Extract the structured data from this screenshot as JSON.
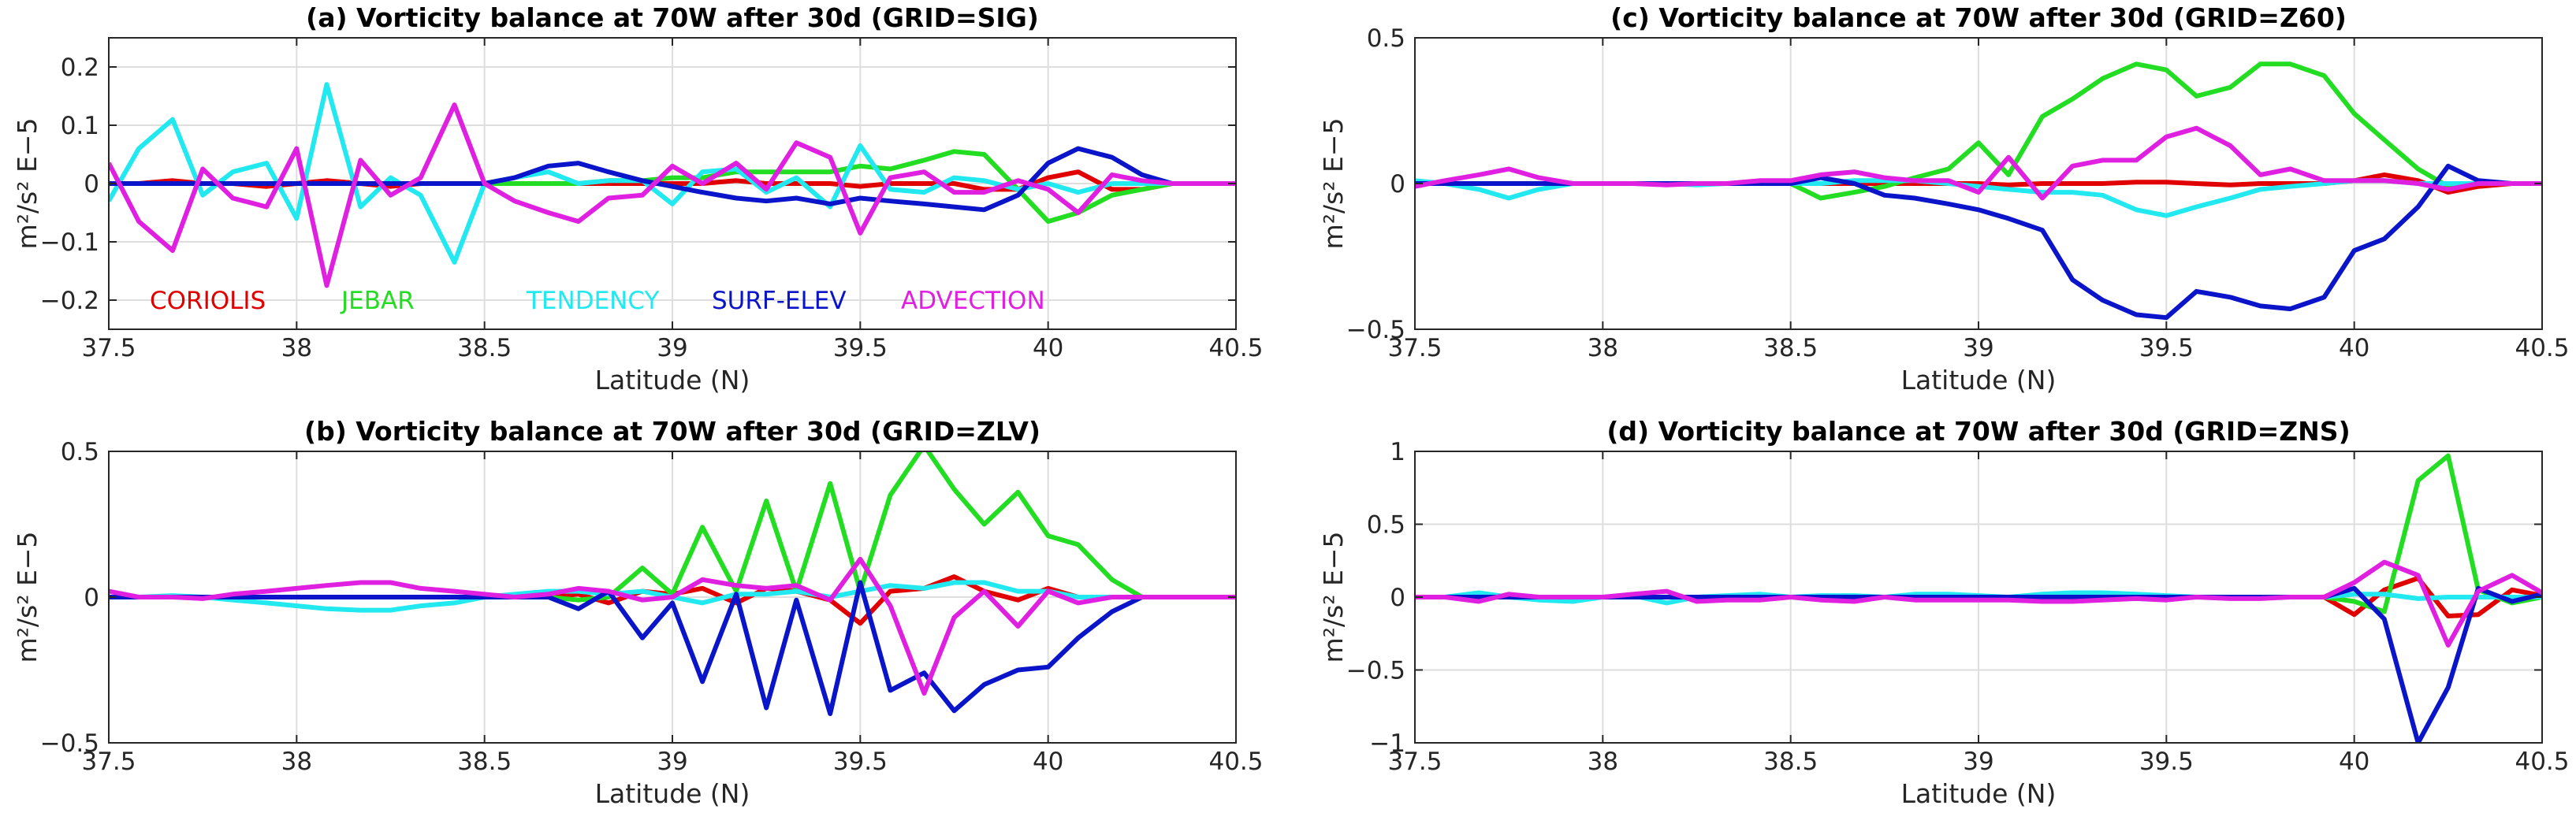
{
  "series_colors": {
    "coriolis": "#e00000",
    "jebar": "#22dd22",
    "tendency": "#22e8f0",
    "surf_elev": "#0a14c8",
    "advection": "#e020e0"
  },
  "chart_data": [
    {
      "id": "a",
      "type": "line",
      "title": "(a) Vorticity balance at 70W after 30d (GRID=SIG)",
      "xlabel": "Latitude (N)",
      "ylabel": "m²/s² E−5",
      "xlim": [
        37.5,
        40.5
      ],
      "ylim": [
        -0.25,
        0.25
      ],
      "xticks": [
        "37.5",
        "38",
        "38.5",
        "39",
        "39.5",
        "40",
        "40.5"
      ],
      "yticks": [
        "-0.2",
        "-0.1",
        "0",
        "0.1",
        "0.2"
      ],
      "grid": true,
      "legend_inside": true,
      "legend_entries": [
        "CORIOLIS",
        "JEBAR",
        "TENDENCY",
        "SURF-ELEV",
        "ADVECTION"
      ],
      "x": [
        37.5,
        37.58,
        37.67,
        37.75,
        37.83,
        37.92,
        38.0,
        38.08,
        38.17,
        38.25,
        38.33,
        38.42,
        38.5,
        38.58,
        38.67,
        38.75,
        38.83,
        38.92,
        39.0,
        39.08,
        39.17,
        39.25,
        39.33,
        39.42,
        39.5,
        39.58,
        39.67,
        39.75,
        39.83,
        39.92,
        40.0,
        40.08,
        40.17,
        40.25,
        40.33,
        40.42,
        40.5
      ],
      "series": [
        {
          "key": "coriolis",
          "values": [
            0,
            0,
            0.005,
            0,
            0,
            -0.005,
            0,
            0.005,
            0,
            -0.005,
            0,
            0,
            0,
            0,
            0,
            0,
            0,
            0,
            0,
            0,
            0.005,
            0,
            0,
            0,
            -0.005,
            0,
            0,
            0,
            -0.01,
            -0.01,
            0.01,
            0.02,
            -0.01,
            -0.01,
            0,
            0,
            0
          ]
        },
        {
          "key": "jebar",
          "values": [
            0,
            0,
            0,
            0,
            0,
            0,
            0,
            0,
            0,
            0,
            0,
            0,
            0,
            0,
            0,
            0,
            0.005,
            0.005,
            0.01,
            0.01,
            0.02,
            0.02,
            0.02,
            0.02,
            0.03,
            0.025,
            0.04,
            0.055,
            0.05,
            -0.01,
            -0.065,
            -0.05,
            -0.02,
            -0.01,
            0,
            0,
            0
          ]
        },
        {
          "key": "tendency",
          "values": [
            -0.03,
            0.06,
            0.11,
            -0.02,
            0.02,
            0.035,
            -0.06,
            0.17,
            -0.04,
            0.01,
            -0.02,
            -0.135,
            0,
            0.01,
            0.02,
            0,
            0.005,
            0.005,
            -0.035,
            0.02,
            0.025,
            -0.015,
            0.01,
            -0.04,
            0.065,
            -0.01,
            -0.015,
            0.01,
            0.005,
            -0.01,
            0,
            -0.015,
            0,
            0,
            0,
            0,
            0
          ]
        },
        {
          "key": "surf_elev",
          "values": [
            0,
            0,
            0,
            0,
            0,
            0,
            0,
            0,
            0,
            0,
            0,
            0,
            0,
            0.01,
            0.03,
            0.035,
            0.02,
            0.005,
            -0.005,
            -0.015,
            -0.025,
            -0.03,
            -0.025,
            -0.035,
            -0.025,
            -0.03,
            -0.035,
            -0.04,
            -0.045,
            -0.02,
            0.035,
            0.06,
            0.045,
            0.015,
            0,
            0,
            0
          ]
        },
        {
          "key": "advection",
          "values": [
            0.035,
            -0.065,
            -0.115,
            0.025,
            -0.025,
            -0.04,
            0.06,
            -0.175,
            0.04,
            -0.02,
            0.01,
            0.135,
            0,
            -0.03,
            -0.05,
            -0.065,
            -0.025,
            -0.02,
            0.03,
            0,
            0.035,
            -0.01,
            0.07,
            0.045,
            -0.085,
            0.01,
            0.02,
            -0.015,
            -0.015,
            0.005,
            -0.01,
            -0.05,
            0.015,
            0.005,
            0,
            0,
            0
          ]
        }
      ]
    },
    {
      "id": "b",
      "type": "line",
      "title": "(b) Vorticity balance at 70W after 30d (GRID=ZLV)",
      "xlabel": "Latitude (N)",
      "ylabel": "m²/s² E−5",
      "xlim": [
        37.5,
        40.5
      ],
      "ylim": [
        -0.5,
        0.5
      ],
      "xticks": [
        "37.5",
        "38",
        "38.5",
        "39",
        "39.5",
        "40",
        "40.5"
      ],
      "yticks": [
        "-0.5",
        "0",
        "0.5"
      ],
      "grid": true,
      "legend_inside": false,
      "legend_entries": [],
      "x": [
        37.5,
        37.58,
        37.67,
        37.75,
        37.83,
        37.92,
        38.0,
        38.08,
        38.17,
        38.25,
        38.33,
        38.42,
        38.5,
        38.58,
        38.67,
        38.75,
        38.83,
        38.92,
        39.0,
        39.08,
        39.17,
        39.25,
        39.33,
        39.42,
        39.5,
        39.58,
        39.67,
        39.75,
        39.83,
        39.92,
        40.0,
        40.08,
        40.17,
        40.25,
        40.33,
        40.42,
        40.5
      ],
      "series": [
        {
          "key": "coriolis",
          "values": [
            0,
            0,
            0,
            0,
            0,
            0,
            0,
            0,
            0,
            0,
            0,
            0,
            0,
            0,
            0,
            0.01,
            -0.02,
            0.02,
            0.01,
            0.03,
            -0.02,
            0.03,
            0.02,
            -0.01,
            -0.09,
            0.02,
            0.03,
            0.07,
            0.02,
            -0.01,
            0.03,
            0,
            0,
            0,
            0,
            0,
            0
          ]
        },
        {
          "key": "jebar",
          "values": [
            0,
            0,
            0,
            0,
            0,
            0,
            0,
            0,
            0,
            0,
            0,
            0,
            0,
            0,
            0,
            -0.01,
            0,
            0.1,
            0.01,
            0.24,
            0.02,
            0.33,
            0.02,
            0.39,
            0.02,
            0.35,
            0.52,
            0.37,
            0.25,
            0.36,
            0.21,
            0.18,
            0.06,
            0,
            0,
            0,
            0
          ]
        },
        {
          "key": "tendency",
          "values": [
            0,
            0,
            0.005,
            0,
            -0.01,
            -0.02,
            -0.03,
            -0.04,
            -0.045,
            -0.045,
            -0.03,
            -0.02,
            0,
            0.01,
            0.02,
            0.02,
            0.01,
            0.02,
            0,
            -0.02,
            0.01,
            0.01,
            0.02,
            0,
            0.02,
            0.04,
            0.03,
            0.05,
            0.05,
            0.02,
            0.02,
            0,
            0,
            0,
            0,
            0,
            0
          ]
        },
        {
          "key": "surf_elev",
          "values": [
            0,
            0,
            0,
            0,
            0,
            0,
            0,
            0,
            0,
            0,
            0,
            0,
            0,
            0,
            0,
            -0.04,
            0.02,
            -0.14,
            -0.02,
            -0.29,
            0.01,
            -0.38,
            -0.01,
            -0.4,
            0.05,
            -0.32,
            -0.26,
            -0.39,
            -0.3,
            -0.25,
            -0.24,
            -0.14,
            -0.05,
            0,
            0,
            0,
            0
          ]
        },
        {
          "key": "advection",
          "values": [
            0.02,
            0,
            0,
            -0.005,
            0.01,
            0.02,
            0.03,
            0.04,
            0.05,
            0.05,
            0.03,
            0.02,
            0.01,
            0,
            0.01,
            0.03,
            0.02,
            -0.01,
            0,
            0.06,
            0.04,
            0.03,
            0.04,
            -0.01,
            0.13,
            -0.03,
            -0.33,
            -0.07,
            0.02,
            -0.1,
            0.02,
            -0.02,
            0,
            0,
            0,
            0,
            0
          ]
        }
      ]
    },
    {
      "id": "c",
      "type": "line",
      "title": "(c) Vorticity balance at 70W after 30d (GRID=Z60)",
      "xlabel": "Latitude (N)",
      "ylabel": "m²/s² E−5",
      "xlim": [
        37.5,
        40.5
      ],
      "ylim": [
        -0.5,
        0.5
      ],
      "xticks": [
        "37.5",
        "38",
        "38.5",
        "39",
        "39.5",
        "40",
        "40.5"
      ],
      "yticks": [
        "-0.5",
        "0",
        "0.5"
      ],
      "grid": true,
      "legend_inside": false,
      "legend_entries": [],
      "x": [
        37.5,
        37.58,
        37.67,
        37.75,
        37.83,
        37.92,
        38.0,
        38.08,
        38.17,
        38.25,
        38.33,
        38.42,
        38.5,
        38.58,
        38.67,
        38.75,
        38.83,
        38.92,
        39.0,
        39.08,
        39.17,
        39.25,
        39.33,
        39.42,
        39.5,
        39.58,
        39.67,
        39.75,
        39.83,
        39.92,
        40.0,
        40.08,
        40.17,
        40.25,
        40.33,
        40.42,
        40.5
      ],
      "series": [
        {
          "key": "coriolis",
          "values": [
            0,
            0,
            0,
            0,
            0,
            0,
            0,
            0,
            0,
            0,
            0,
            0,
            0,
            0,
            0,
            0,
            0,
            0,
            0,
            -0.005,
            0,
            0,
            0,
            0.005,
            0.005,
            0,
            -0.005,
            0,
            0,
            0,
            0.01,
            0.03,
            0.01,
            -0.03,
            -0.01,
            0,
            0
          ]
        },
        {
          "key": "jebar",
          "values": [
            0,
            0,
            0,
            0,
            0,
            0,
            0,
            0,
            0,
            0,
            0,
            0,
            0,
            -0.05,
            -0.03,
            -0.01,
            0.02,
            0.05,
            0.14,
            0.03,
            0.23,
            0.29,
            0.36,
            0.41,
            0.39,
            0.3,
            0.33,
            0.41,
            0.41,
            0.37,
            0.24,
            0.15,
            0.05,
            -0.01,
            0,
            0,
            0
          ]
        },
        {
          "key": "tendency",
          "values": [
            0.01,
            0,
            -0.02,
            -0.05,
            -0.02,
            0,
            0,
            0,
            0,
            -0.005,
            0,
            0,
            0,
            0,
            0.01,
            0.01,
            0.01,
            0,
            -0.01,
            -0.02,
            -0.03,
            -0.03,
            -0.04,
            -0.09,
            -0.11,
            -0.08,
            -0.05,
            -0.02,
            -0.01,
            0,
            0.01,
            0.01,
            0,
            0,
            0,
            0,
            0
          ]
        },
        {
          "key": "surf_elev",
          "values": [
            0,
            0,
            0,
            0,
            0,
            0,
            0,
            0,
            0,
            0,
            0,
            0,
            0,
            0.02,
            0,
            -0.04,
            -0.05,
            -0.07,
            -0.09,
            -0.12,
            -0.16,
            -0.33,
            -0.4,
            -0.45,
            -0.46,
            -0.37,
            -0.39,
            -0.42,
            -0.43,
            -0.39,
            -0.23,
            -0.19,
            -0.08,
            0.06,
            0.01,
            0,
            0
          ]
        },
        {
          "key": "advection",
          "values": [
            -0.01,
            0.01,
            0.03,
            0.05,
            0.02,
            0,
            0,
            0,
            -0.005,
            0,
            0,
            0.01,
            0.01,
            0.03,
            0.04,
            0.02,
            0.01,
            0.01,
            -0.03,
            0.09,
            -0.05,
            0.06,
            0.08,
            0.08,
            0.16,
            0.19,
            0.13,
            0.03,
            0.05,
            0.01,
            0.01,
            0.01,
            0,
            -0.02,
            0,
            0,
            0
          ]
        }
      ]
    },
    {
      "id": "d",
      "type": "line",
      "title": "(d) Vorticity balance at 70W after 30d (GRID=ZNS)",
      "xlabel": "Latitude (N)",
      "ylabel": "m²/s² E−5",
      "xlim": [
        37.5,
        40.5
      ],
      "ylim": [
        -1,
        1
      ],
      "xticks": [
        "37.5",
        "38",
        "38.5",
        "39",
        "39.5",
        "40",
        "40.5"
      ],
      "yticks": [
        "-1",
        "-0.5",
        "0",
        "0.5",
        "1"
      ],
      "grid": true,
      "legend_inside": false,
      "legend_entries": [],
      "x": [
        37.5,
        37.58,
        37.67,
        37.75,
        37.83,
        37.92,
        38.0,
        38.08,
        38.17,
        38.25,
        38.33,
        38.42,
        38.5,
        38.58,
        38.67,
        38.75,
        38.83,
        38.92,
        39.0,
        39.08,
        39.17,
        39.25,
        39.33,
        39.42,
        39.5,
        39.58,
        39.67,
        39.75,
        39.83,
        39.92,
        40.0,
        40.08,
        40.17,
        40.25,
        40.33,
        40.42,
        40.5
      ],
      "series": [
        {
          "key": "coriolis",
          "values": [
            0,
            0,
            0,
            0,
            0,
            0,
            0,
            0,
            0,
            0,
            0,
            0,
            0,
            0,
            0,
            0,
            0,
            0,
            0,
            0,
            0,
            0,
            0,
            0,
            0,
            0,
            0,
            0,
            0,
            0,
            -0.12,
            0.05,
            0.13,
            -0.13,
            -0.12,
            0.05,
            0.01
          ]
        },
        {
          "key": "jebar",
          "values": [
            0,
            0,
            0,
            0,
            0,
            0,
            0,
            0,
            0,
            0,
            0,
            0,
            0,
            0,
            0,
            0,
            0,
            0,
            0,
            0,
            0,
            0,
            0,
            0,
            0,
            0,
            0,
            0,
            0,
            0,
            -0.03,
            -0.1,
            0.8,
            0.97,
            0.05,
            -0.04,
            0
          ]
        },
        {
          "key": "tendency",
          "values": [
            0,
            0,
            0.03,
            0,
            -0.02,
            -0.03,
            0,
            0.01,
            -0.04,
            0,
            0.01,
            0.02,
            0,
            0.01,
            0.01,
            0,
            0.02,
            0.02,
            0.01,
            0,
            0.02,
            0.03,
            0.03,
            0.02,
            0.01,
            0,
            0,
            0,
            0,
            0,
            0.02,
            0.02,
            -0.01,
            0,
            0,
            0,
            0
          ]
        },
        {
          "key": "surf_elev",
          "values": [
            0,
            0,
            0,
            0,
            0,
            0,
            0,
            0,
            0,
            0,
            0,
            0,
            0,
            0,
            0,
            0,
            0,
            0,
            0,
            0,
            0,
            0,
            0,
            0,
            0,
            0,
            0,
            0,
            0,
            0,
            0.06,
            -0.15,
            -1.0,
            -0.62,
            0.06,
            -0.03,
            0.02
          ]
        },
        {
          "key": "advection",
          "values": [
            0,
            0,
            -0.03,
            0.02,
            0,
            0,
            0,
            0.02,
            0.04,
            -0.03,
            -0.02,
            -0.02,
            0,
            -0.02,
            -0.03,
            0,
            -0.02,
            -0.02,
            -0.02,
            -0.02,
            -0.03,
            -0.03,
            -0.02,
            -0.01,
            -0.02,
            0,
            -0.01,
            -0.01,
            0,
            0,
            0.1,
            0.24,
            0.15,
            -0.33,
            0.04,
            0.15,
            0.03
          ]
        }
      ]
    }
  ]
}
